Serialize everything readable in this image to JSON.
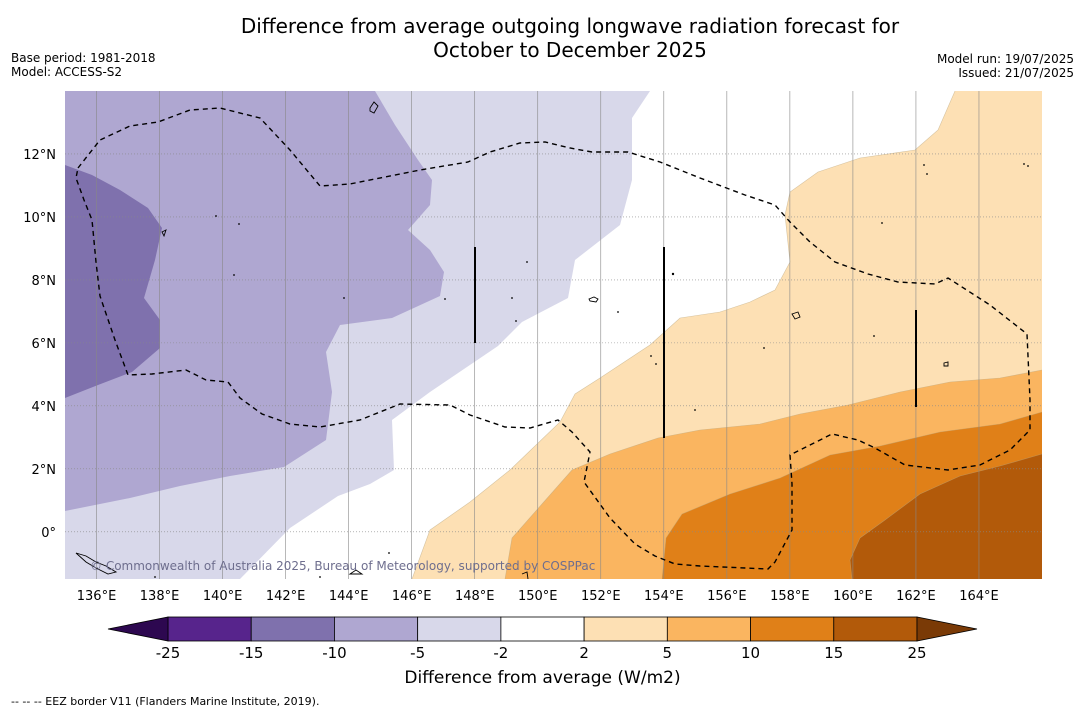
{
  "title": {
    "line1": "Difference from average outgoing longwave radiation forecast for",
    "line2": "October to December 2025"
  },
  "meta": {
    "base_period": "Base period: 1981-2018",
    "model": "Model: ACCESS-S2",
    "model_run": "Model run: 19/07/2025",
    "issued": "Issued: 21/07/2025"
  },
  "map": {
    "lon_range": [
      135,
      166
    ],
    "lat_range": [
      -1.5,
      14
    ],
    "lon_ticks": [
      "136°E",
      "138°E",
      "140°E",
      "142°E",
      "144°E",
      "146°E",
      "148°E",
      "150°E",
      "152°E",
      "154°E",
      "156°E",
      "158°E",
      "160°E",
      "162°E",
      "164°E"
    ],
    "lat_ticks": [
      "12°N",
      "10°N",
      "8°N",
      "6°N",
      "4°N",
      "2°N",
      "0°"
    ],
    "copyright": "© Commonwealth of Australia 2025, Bureau of Meteorology, supported by COSPPac"
  },
  "colorbar": {
    "title": "Difference from average (W/m2)",
    "labels": [
      "-25",
      "-15",
      "-10",
      "-5",
      "-2",
      "2",
      "5",
      "10",
      "15",
      "25"
    ],
    "colors": [
      "#57248c",
      "#7f71ad",
      "#afa7d1",
      "#d8d8ea",
      "#ffffff",
      "#fde0b4",
      "#fab560",
      "#e08018",
      "#b25a0a"
    ],
    "under_color": "#2d0850",
    "over_color": "#7a3a06"
  },
  "footnote": "--  --  -- EEZ border V11 (Flanders Marine Institute, 2019)."
}
